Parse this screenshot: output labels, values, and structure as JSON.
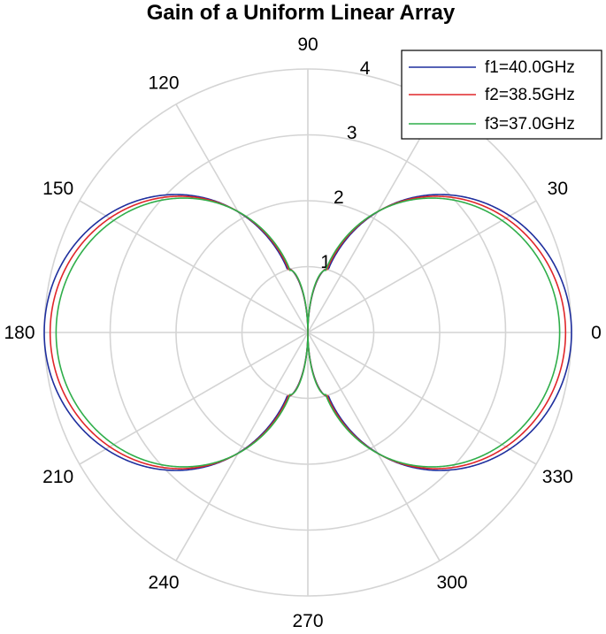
{
  "chart_data": {
    "type": "line",
    "projection": "polar",
    "title": "Gain of a Uniform Linear Array",
    "r_ticks": [
      "1",
      "2",
      "3",
      "4"
    ],
    "rlim": [
      0,
      4
    ],
    "theta_ticks": [
      "0",
      "30",
      "60",
      "90",
      "120",
      "150",
      "180",
      "210",
      "240",
      "270",
      "300",
      "330"
    ],
    "theta_ticks_shown": [
      "0",
      "30",
      "90",
      "120",
      "150",
      "180",
      "210",
      "240",
      "270",
      "300",
      "330"
    ],
    "grid": true,
    "legend_position": "top-right",
    "series": [
      {
        "name": "f1=40.0GHz",
        "color": "#1f2f9e",
        "peak_gain": 4.0,
        "sidelobe_gain": 1.02,
        "sidelobe_angle_deg": 72,
        "null_angle_deg": 90
      },
      {
        "name": "f2=38.5GHz",
        "color": "#e0262a",
        "peak_gain": 3.91,
        "sidelobe_gain": 1.0,
        "sidelobe_angle_deg": 73,
        "null_angle_deg": 90
      },
      {
        "name": "f3=37.0GHz",
        "color": "#2fae4a",
        "peak_gain": 3.82,
        "sidelobe_gain": 0.98,
        "sidelobe_angle_deg": 74,
        "null_angle_deg": 90
      }
    ]
  }
}
